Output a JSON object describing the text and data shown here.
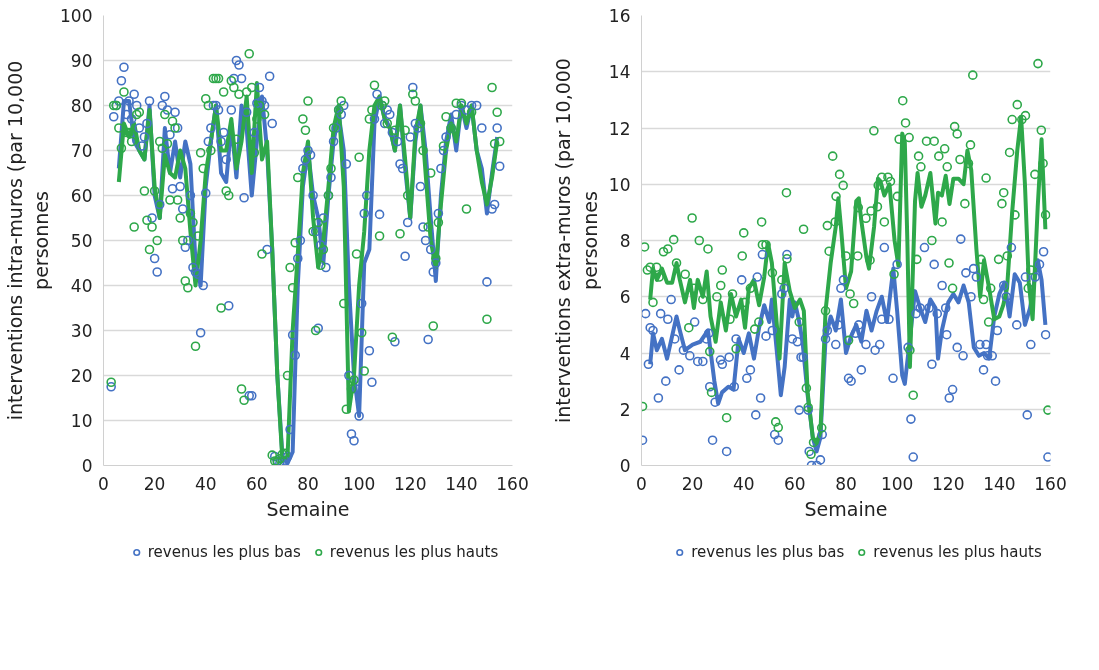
{
  "chart_data": [
    {
      "type": "scatter",
      "xlabel": "Semaine",
      "ylabel": "interventions intra-muros (par 10,000 personnes",
      "xlim": [
        0,
        160
      ],
      "xticks": [
        0,
        20,
        40,
        60,
        80,
        100,
        120,
        140,
        160
      ],
      "ylim": [
        0,
        100
      ],
      "yticks": [
        0,
        10,
        20,
        30,
        40,
        50,
        60,
        70,
        80,
        90,
        100
      ],
      "grid": "y",
      "legend": "bottom",
      "marker": "circle",
      "series": [
        {
          "name": "revenus les plus bas",
          "color": "#4472c4",
          "x": [
            3,
            4,
            5,
            6,
            7,
            8,
            9,
            10,
            11,
            12,
            13,
            14,
            15,
            16,
            17,
            18,
            19,
            20,
            21,
            22,
            23,
            24,
            25,
            26,
            27,
            28,
            29,
            30,
            31,
            32,
            33,
            34,
            35,
            36,
            37,
            38,
            39,
            40,
            41,
            42,
            43,
            44,
            45,
            46,
            47,
            48,
            49,
            50,
            51,
            52,
            53,
            54,
            55,
            56,
            57,
            58,
            59,
            60,
            61,
            62,
            63,
            64,
            65,
            66,
            67,
            68,
            69,
            70,
            71,
            72,
            73,
            74,
            75,
            76,
            77,
            78,
            79,
            80,
            81,
            82,
            83,
            84,
            85,
            86,
            87,
            88,
            89,
            90,
            91,
            92,
            93,
            94,
            95,
            96,
            97,
            98,
            99,
            100,
            101,
            102,
            103,
            104,
            105,
            106,
            107,
            108,
            109,
            110,
            111,
            112,
            113,
            114,
            115,
            116,
            117,
            118,
            119,
            120,
            121,
            122,
            123,
            124,
            125,
            126,
            127,
            128,
            129,
            130,
            131,
            132,
            133,
            134,
            136,
            138,
            140,
            142,
            144,
            146,
            148,
            150,
            152,
            153,
            154,
            155
          ],
          "values": [
            17.5,
            77.5,
            80,
            81,
            85.5,
            88.5,
            78,
            81,
            77,
            82.5,
            80,
            75,
            71,
            73,
            76,
            81,
            55,
            46,
            43,
            58,
            80,
            82,
            79,
            73.5,
            61.5,
            78.5,
            75,
            62,
            57,
            48.5,
            50,
            60,
            44,
            43,
            42.5,
            29.5,
            40,
            60.5,
            72,
            75,
            80,
            80,
            79,
            72,
            74,
            68,
            35.5,
            79,
            86,
            90,
            89,
            86,
            59.5,
            78.5,
            15.5,
            15.5,
            74,
            80.5,
            84,
            81,
            80,
            48,
            86.5,
            76,
            2,
            1,
            0.5,
            0.3,
            1,
            2,
            8,
            29,
            24.5,
            46,
            50,
            66,
            68,
            70,
            69,
            60,
            52,
            30.5,
            49,
            55,
            44,
            60,
            64,
            72,
            75,
            79,
            78,
            80,
            67,
            20,
            7,
            5.5,
            17,
            11,
            36,
            56,
            60,
            25.5,
            18.5,
            77,
            82.5,
            55.8,
            80,
            76,
            79,
            78,
            74,
            27.5,
            72,
            67,
            66,
            46.5,
            54,
            73,
            84,
            76,
            75,
            62,
            53,
            50,
            28,
            48,
            43,
            45,
            56,
            66,
            70,
            73,
            75,
            78,
            80,
            79,
            80,
            80,
            75,
            40.8,
            57,
            58,
            75,
            66.5
          ]
        },
        {
          "name": "revenus les plus hauts",
          "color": "#2ea84a",
          "x": [
            3,
            4,
            5,
            6,
            7,
            8,
            9,
            10,
            11,
            12,
            13,
            14,
            16,
            17,
            18,
            19,
            20,
            21,
            22,
            23,
            24,
            25,
            26,
            27,
            28,
            29,
            30,
            31,
            32,
            33,
            34,
            35,
            36,
            37,
            38,
            39,
            40,
            41,
            42,
            43,
            44,
            45,
            46,
            47,
            48,
            49,
            50,
            51,
            52,
            53,
            54,
            55,
            56,
            57,
            58,
            59,
            60,
            61,
            62,
            63,
            66,
            67,
            68,
            69,
            70,
            71,
            72,
            73,
            74,
            75,
            76,
            78,
            79,
            80,
            82,
            83,
            84,
            85,
            86,
            88,
            89,
            90,
            92,
            93,
            94,
            95,
            97,
            98,
            99,
            100,
            101,
            102,
            104,
            105,
            106,
            108,
            109,
            110,
            111,
            113,
            114,
            116,
            118,
            119,
            121,
            122,
            124,
            125,
            127,
            128,
            129,
            130,
            131,
            133,
            134,
            136,
            138,
            140,
            142,
            144,
            150,
            152,
            153,
            154,
            155
          ],
          "values": [
            18.5,
            80,
            80,
            75,
            70.5,
            83,
            74,
            74,
            72,
            53,
            78,
            78.5,
            61,
            54.5,
            48,
            53,
            61,
            50,
            72,
            70.5,
            78,
            71.5,
            59,
            76.5,
            75,
            59,
            55,
            50,
            41,
            39.5,
            56,
            54,
            26.5,
            51,
            69.5,
            66,
            81.5,
            80,
            70,
            86,
            86,
            86,
            35,
            83,
            61,
            60,
            85.5,
            84,
            72.5,
            82.5,
            17,
            14.5,
            83,
            91.5,
            84,
            69.5,
            77,
            80,
            47,
            78,
            2.3,
            1,
            0.8,
            1.5,
            2.5,
            2.7,
            20,
            44,
            39.5,
            49.5,
            64,
            77,
            74.5,
            81,
            52,
            30,
            54,
            44.5,
            48,
            60,
            66,
            75,
            79,
            81,
            36,
            12.5,
            17,
            19,
            47,
            68.5,
            29.5,
            21,
            77,
            79,
            84.5,
            51,
            80,
            81,
            76,
            28.5,
            74.5,
            51.5,
            74.5,
            60,
            82.5,
            81,
            76,
            70,
            53,
            65,
            31,
            46,
            54,
            71,
            77.5,
            75,
            80.5,
            80.5,
            57,
            78.5,
            32.5,
            84,
            71.5,
            78.5,
            72
          ]
        },
        {
          "type": "line",
          "marker": "none",
          "color": "#4472c4",
          "x": [
            6,
            8,
            10,
            12,
            14,
            16,
            18,
            20,
            22,
            24,
            26,
            28,
            30,
            32,
            34,
            36,
            38,
            40,
            42,
            44,
            46,
            48,
            50,
            52,
            54,
            56,
            58,
            60,
            62,
            64,
            66,
            68,
            70,
            72,
            74,
            76,
            78,
            80,
            82,
            84,
            86,
            88,
            90,
            92,
            94,
            96,
            98,
            100,
            102,
            104,
            106,
            108,
            110,
            112,
            114,
            116,
            118,
            120,
            122,
            124,
            126,
            128,
            130,
            132,
            134,
            136,
            138,
            140,
            142,
            144,
            146,
            148,
            150,
            152,
            154
          ],
          "values": [
            66,
            81,
            81,
            72,
            70,
            68,
            80,
            60,
            55,
            75,
            65,
            72,
            64,
            72,
            67,
            45,
            40,
            62,
            72,
            80,
            65,
            63,
            76,
            64,
            80,
            75,
            60,
            72,
            82,
            70,
            48,
            20,
            2,
            0.5,
            3,
            40,
            62,
            70,
            60,
            55,
            45,
            60,
            72,
            78,
            70,
            40,
            20,
            11,
            45,
            48,
            76,
            82,
            77,
            75,
            70,
            80,
            66,
            55,
            72,
            80,
            70,
            55,
            41,
            60,
            72,
            78,
            70,
            80,
            75,
            80,
            70,
            66,
            56,
            65,
            73
          ]
        },
        {
          "type": "line",
          "marker": "none",
          "color": "#2ea84a",
          "x": [
            6,
            8,
            10,
            12,
            14,
            16,
            18,
            20,
            22,
            24,
            26,
            28,
            30,
            32,
            34,
            36,
            38,
            40,
            42,
            44,
            46,
            48,
            50,
            52,
            54,
            56,
            58,
            60,
            62,
            64,
            66,
            68,
            70,
            72,
            74,
            76,
            78,
            80,
            82,
            84,
            86,
            88,
            90,
            92,
            94,
            96,
            98,
            100,
            102,
            104,
            106,
            108,
            110,
            112,
            114,
            116,
            118,
            120,
            122,
            124,
            126,
            128,
            130,
            132,
            134,
            136,
            138,
            140,
            142,
            144,
            146,
            148,
            150,
            152,
            154
          ],
          "values": [
            63,
            76,
            73,
            76,
            70,
            68,
            79,
            62,
            55,
            69,
            65,
            64,
            70,
            66,
            52,
            40,
            50,
            65,
            72,
            80,
            70,
            70,
            77,
            66,
            72,
            82,
            65,
            85,
            68,
            72,
            48,
            20,
            1,
            2,
            30,
            47,
            65,
            72,
            55,
            44,
            50,
            62,
            75,
            80,
            62,
            12,
            20,
            40,
            52,
            70,
            80,
            82,
            77,
            75,
            70,
            80,
            68,
            55,
            74,
            80,
            65,
            50,
            44,
            58,
            70,
            76,
            72,
            80,
            76,
            80,
            70,
            63,
            58,
            64,
            72
          ]
        }
      ]
    },
    {
      "type": "scatter",
      "xlabel": "Semaine",
      "ylabel": "interventions extra-muros (par 10,000 personnes",
      "xlim": [
        0,
        160
      ],
      "xticks": [
        0,
        20,
        40,
        60,
        80,
        100,
        120,
        140,
        160
      ],
      "ylim": [
        0,
        16
      ],
      "yticks": [
        0,
        2,
        4,
        6,
        8,
        10,
        12,
        14,
        16
      ],
      "grid": "y",
      "legend": "bottom",
      "marker": "circle",
      "series": [
        {
          "name": "revenus les plus bas",
          "color": "#4472c4",
          "x": [
            0.4,
            1.6,
            2.7,
            3.4,
            4.5,
            6.6,
            7.5,
            9.5,
            10.3,
            11.6,
            13,
            14.7,
            16.4,
            18.9,
            20.8,
            22,
            24,
            25.4,
            26.3,
            26.7,
            27.8,
            28.8,
            30.9,
            31.6,
            33.3,
            34.3,
            36.3,
            37,
            39.2,
            41.2,
            42.6,
            44.7,
            45.3,
            46.6,
            47.3,
            48.7,
            51.2,
            52.1,
            53.5,
            54.9,
            55.8,
            56.9,
            59,
            61,
            61.7,
            62.4,
            63.3,
            65.2,
            65.6,
            66.5,
            68.6,
            70,
            70.7,
            72,
            72.7,
            76,
            77,
            78,
            79,
            81,
            82,
            83.7,
            85,
            86,
            87.8,
            90,
            91.4,
            93.2,
            94,
            95,
            96.8,
            98.4,
            100,
            104.3,
            105.4,
            106.3,
            107.4,
            109,
            110.7,
            112.5,
            113.6,
            114.5,
            115.7,
            117.6,
            119,
            119.4,
            120.4,
            121.7,
            123.5,
            124.9,
            125.8,
            126.9,
            128.9,
            129.9,
            131,
            132.4,
            133.8,
            134.8,
            135.4,
            137.2,
            138.5,
            139.2,
            141.7,
            142.7,
            144.7,
            146.8,
            150.2,
            150.9,
            152.3,
            154,
            155.7,
            157.3,
            158.1,
            159
          ],
          "values": [
            0.9,
            5.4,
            3.6,
            4.9,
            4.8,
            2.4,
            5.4,
            3.0,
            5.2,
            5.9,
            4.5,
            3.4,
            4.1,
            3.9,
            5.1,
            3.7,
            3.7,
            4.5,
            4.7,
            2.8,
            0.9,
            2.25,
            3.75,
            3.6,
            0.5,
            3.85,
            2.8,
            4.5,
            6.6,
            3.1,
            3.4,
            1.8,
            6.7,
            2.4,
            7.5,
            4.6,
            4.8,
            1.1,
            0.9,
            6.1,
            6.3,
            7.5,
            4.5,
            4.4,
            1.97,
            3.85,
            3.85,
            1.97,
            0.5,
            0,
            0,
            0.2,
            1.1,
            4.5,
            4.8,
            4.3,
            5.0,
            6.3,
            6.6,
            3.1,
            3.0,
            4.7,
            5.0,
            3.4,
            4.3,
            6.0,
            4.1,
            4.3,
            5.2,
            7.75,
            5.2,
            3.1,
            7.15,
            4.2,
            1.65,
            0.3,
            5.4,
            5.6,
            7.75,
            5.6,
            3.6,
            7.15,
            5.4,
            6.4,
            5.6,
            4.65,
            2.4,
            2.7,
            4.2,
            8.05,
            3.9,
            6.85,
            6.0,
            7.0,
            6.7,
            4.3,
            3.4,
            4.3,
            3.9,
            3.9,
            3.0,
            4.8,
            6.4,
            6.0,
            7.75,
            5.0,
            6.7,
            1.8,
            4.3,
            6.7,
            7.15,
            7.6,
            4.65,
            0.3
          ]
        },
        {
          "name": "revenus les plus hauts",
          "color": "#2ea84a",
          "x": [
            0.4,
            1.2,
            2.3,
            3.4,
            4.5,
            5.9,
            6.9,
            8.6,
            10.3,
            12.6,
            13.7,
            17.1,
            18.5,
            19.8,
            20.5,
            22.6,
            24,
            26,
            26.7,
            27.4,
            29.5,
            31,
            31.6,
            33.3,
            34.6,
            35.6,
            37,
            39.4,
            40,
            40.4,
            42.6,
            44.3,
            45.9,
            47,
            47.3,
            48.7,
            51.2,
            52.5,
            53.5,
            54.9,
            56.7,
            56.9,
            61.7,
            63.4,
            64.5,
            65.2,
            66.3,
            67.3,
            70.5,
            72,
            72.7,
            73.4,
            74.8,
            75.8,
            76.1,
            77.5,
            78.9,
            80,
            81,
            81.6,
            83,
            84.6,
            84.8,
            87.8,
            89.4,
            89.8,
            90.9,
            92.3,
            92.6,
            94,
            95,
            96.4,
            97.4,
            98.8,
            100.1,
            100.8,
            102.2,
            103.3,
            104.7,
            105,
            106.3,
            107.7,
            108.4,
            109.3,
            111.5,
            113.6,
            114.5,
            116.3,
            117.6,
            118.6,
            119.6,
            120.3,
            121.7,
            122.5,
            123.5,
            124.6,
            126.5,
            127.9,
            128.7,
            129.6,
            132.8,
            133.8,
            134.8,
            135.8,
            136.6,
            139.7,
            141,
            141.7,
            143.1,
            144,
            145,
            146.1,
            147,
            148.8,
            150.2,
            151.3,
            152.3,
            153.9,
            155.1,
            156.4,
            157.1,
            158.1,
            159
          ],
          "values": [
            2.1,
            7.77,
            6.95,
            7.05,
            5.8,
            7.05,
            6.7,
            7.6,
            7.7,
            8.03,
            7.2,
            6.8,
            4.9,
            8.8,
            6.3,
            8.0,
            5.9,
            7.7,
            4.05,
            2.6,
            6.0,
            6.4,
            6.95,
            1.7,
            5.2,
            6.1,
            4.15,
            7.45,
            8.27,
            5.8,
            6.3,
            4.85,
            5.1,
            8.66,
            7.85,
            7.85,
            6.85,
            1.55,
            1.35,
            6.6,
            9.7,
            7.35,
            5.1,
            8.4,
            2.75,
            2.07,
            0.4,
            0.82,
            1.34,
            5.5,
            8.53,
            7.62,
            11.0,
            8.66,
            9.57,
            10.35,
            9.96,
            7.45,
            4.45,
            6.1,
            5.76,
            7.45,
            9.17,
            8.79,
            7.3,
            9.05,
            11.9,
            9.2,
            9.96,
            10.25,
            8.66,
            10.25,
            10.1,
            6.8,
            9.57,
            11.6,
            12.97,
            12.18,
            11.66,
            4.1,
            2.5,
            7.33,
            11.0,
            10.62,
            11.53,
            8.0,
            11.53,
            11.0,
            8.66,
            11.26,
            10.62,
            7.2,
            6.3,
            12.05,
            11.79,
            10.88,
            9.31,
            10.74,
            11.4,
            13.88,
            7.33,
            5.9,
            10.22,
            5.1,
            6.3,
            7.33,
            9.31,
            9.7,
            7.45,
            11.13,
            12.3,
            8.91,
            12.83,
            12.3,
            12.44,
            6.3,
            6.95,
            10.35,
            14.29,
            11.92,
            10.74,
            8.91,
            1.97
          ]
        },
        {
          "type": "line",
          "marker": "none",
          "color": "#4472c4",
          "x": [
            3.4,
            4.5,
            6,
            8,
            10,
            13.7,
            15,
            17,
            20,
            23,
            26,
            28.5,
            30,
            31.5,
            34,
            36,
            38,
            40,
            42,
            44,
            46,
            48,
            50,
            51,
            53,
            54.5,
            56,
            58,
            59,
            60,
            61.5,
            63,
            65,
            67,
            68.5,
            70,
            72,
            74,
            76,
            78,
            80,
            82,
            84,
            86,
            88,
            90,
            92,
            94,
            96,
            98.5,
            100,
            102,
            103,
            105,
            107,
            109,
            111,
            113,
            115,
            116,
            117.5,
            120,
            122,
            124,
            126,
            128,
            130,
            132,
            134,
            136,
            138,
            140,
            142,
            144,
            146,
            148,
            150,
            152,
            155,
            156.5,
            158
          ],
          "values": [
            3.6,
            4.7,
            4.1,
            4.5,
            3.8,
            5.3,
            4.8,
            4.1,
            4.3,
            4.4,
            4.8,
            3.0,
            2.2,
            2.6,
            2.8,
            2.7,
            4.5,
            4.0,
            4.7,
            3.8,
            4.9,
            5.7,
            5.1,
            5.9,
            4.0,
            2.5,
            3.5,
            5.9,
            5.3,
            5.8,
            5.2,
            4.4,
            2.5,
            1.0,
            0.5,
            1.0,
            4.5,
            5.3,
            4.8,
            5.9,
            4.0,
            4.6,
            5.0,
            4.4,
            5.5,
            4.8,
            5.5,
            6.0,
            5.1,
            7.0,
            5.5,
            3.2,
            2.9,
            4.5,
            6.2,
            5.6,
            5.1,
            5.9,
            5.6,
            3.8,
            4.8,
            5.8,
            6.1,
            5.8,
            6.4,
            5.8,
            4.2,
            3.9,
            4.0,
            3.8,
            5.3,
            6.1,
            6.5,
            5.3,
            6.8,
            6.5,
            5.0,
            5.6,
            7.3,
            6.6,
            5.0
          ]
        },
        {
          "type": "line",
          "marker": "none",
          "color": "#2ea84a",
          "x": [
            3.4,
            4.5,
            6,
            8,
            10,
            12,
            13.7,
            15,
            17,
            19,
            20.5,
            22,
            24,
            25.5,
            27,
            29,
            31,
            33,
            35,
            37,
            39,
            40.5,
            42,
            44,
            46,
            48,
            49.5,
            51,
            52.5,
            54,
            56,
            58,
            60,
            62,
            63.5,
            65,
            67,
            68.5,
            70,
            72,
            74,
            76,
            77,
            78,
            80,
            82,
            84,
            85,
            86,
            88,
            89,
            91,
            92.5,
            93.5,
            95,
            97,
            99,
            100.5,
            102,
            103,
            104,
            105,
            107,
            108,
            109.5,
            111,
            113,
            115,
            116,
            117.5,
            119,
            120.5,
            122,
            124,
            126,
            127.5,
            129,
            131,
            132.5,
            134,
            136,
            138,
            140,
            141.5,
            143,
            145,
            147,
            148.5,
            150,
            151.5,
            153,
            155,
            156.5,
            158
          ],
          "values": [
            5.9,
            7.0,
            6.6,
            7.0,
            6.5,
            6.5,
            7.2,
            6.6,
            5.8,
            6.6,
            5.6,
            6.6,
            6.0,
            6.9,
            5.3,
            4.4,
            5.8,
            4.8,
            6.1,
            5.3,
            5.9,
            4.9,
            6.3,
            6.6,
            5.7,
            6.7,
            7.9,
            7.2,
            5.5,
            3.8,
            7.2,
            6.2,
            5.6,
            5.9,
            5.5,
            2.6,
            1.0,
            0.8,
            1.2,
            5.5,
            7.2,
            8.5,
            9.5,
            8.5,
            6.3,
            6.9,
            9.4,
            9.5,
            8.7,
            7.4,
            7.0,
            8.5,
            10.2,
            10.1,
            9.6,
            10.0,
            8.0,
            7.1,
            11.8,
            11.5,
            8.0,
            3.5,
            9.4,
            10.4,
            9.2,
            9.6,
            10.4,
            8.6,
            9.7,
            9.6,
            10.3,
            9.3,
            10.2,
            10.2,
            10.0,
            11.2,
            10.5,
            7.7,
            6.0,
            7.3,
            6.3,
            5.2,
            5.3,
            5.7,
            6.3,
            9.0,
            11.2,
            12.4,
            10.0,
            6.5,
            5.2,
            9.2,
            11.6,
            8.4
          ]
        }
      ]
    }
  ]
}
